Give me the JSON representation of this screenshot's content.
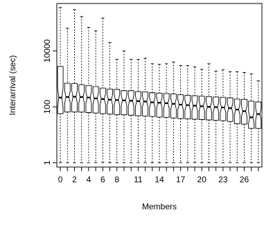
{
  "chart_data": {
    "type": "boxplot",
    "xlabel": "Members",
    "ylabel": "Interarrival (sec)",
    "y_scale": "log",
    "ylim": [
      0.7,
      500000
    ],
    "y_ticks": [
      1,
      100,
      10000
    ],
    "y_tick_labels": [
      "1",
      "100",
      "10000"
    ],
    "x_tick_labels": [
      "0",
      "2",
      "4",
      "6",
      "8",
      "11",
      "14",
      "17",
      "20",
      "23",
      "26"
    ],
    "x_tick_positions": [
      0,
      2,
      4,
      6,
      8,
      11,
      14,
      17,
      20,
      23,
      26
    ],
    "notched": true,
    "boxes": [
      {
        "member": 0,
        "whisker_low": 1,
        "q1": 57,
        "median": 215,
        "q3": 2800,
        "whisker_high": 360000
      },
      {
        "member": 1,
        "whisker_low": 1,
        "q1": 66,
        "median": 225,
        "q3": 700,
        "whisker_high": 65000
      },
      {
        "member": 2,
        "whisker_low": 1,
        "q1": 66,
        "median": 230,
        "q3": 680,
        "whisker_high": 300000
      },
      {
        "member": 3,
        "whisker_low": 1,
        "q1": 65,
        "median": 225,
        "q3": 620,
        "whisker_high": 170000
      },
      {
        "member": 4,
        "whisker_low": 1,
        "q1": 62,
        "median": 215,
        "q3": 580,
        "whisker_high": 70000
      },
      {
        "member": 5,
        "whisker_low": 1,
        "q1": 60,
        "median": 200,
        "q3": 530,
        "whisker_high": 52000
      },
      {
        "member": 6,
        "whisker_low": 1,
        "q1": 57,
        "median": 190,
        "q3": 470,
        "whisker_high": 150000
      },
      {
        "member": 7,
        "whisker_low": 1,
        "q1": 55,
        "median": 180,
        "q3": 430,
        "whisker_high": 20000
      },
      {
        "member": 8,
        "whisker_low": 1,
        "q1": 52,
        "median": 175,
        "q3": 420,
        "whisker_high": 5000
      },
      {
        "member": 9,
        "whisker_low": 1,
        "q1": 52,
        "median": 170,
        "q3": 380,
        "whisker_high": 10000
      },
      {
        "member": 10,
        "whisker_low": 1,
        "q1": 50,
        "median": 165,
        "q3": 380,
        "whisker_high": 5000
      },
      {
        "member": 11,
        "whisker_low": 1,
        "q1": 48,
        "median": 160,
        "q3": 350,
        "whisker_high": 5000
      },
      {
        "member": 12,
        "whisker_low": 1,
        "q1": 47,
        "median": 155,
        "q3": 340,
        "whisker_high": 5500
      },
      {
        "member": 13,
        "whisker_low": 1,
        "q1": 45,
        "median": 145,
        "q3": 320,
        "whisker_high": 3500
      },
      {
        "member": 14,
        "whisker_low": 1,
        "q1": 43,
        "median": 140,
        "q3": 310,
        "whisker_high": 3300
      },
      {
        "member": 15,
        "whisker_low": 1,
        "q1": 42,
        "median": 135,
        "q3": 300,
        "whisker_high": 3500
      },
      {
        "member": 16,
        "whisker_low": 1,
        "q1": 40,
        "median": 128,
        "q3": 290,
        "whisker_high": 4000
      },
      {
        "member": 17,
        "whisker_low": 1,
        "q1": 38,
        "median": 120,
        "q3": 270,
        "whisker_high": 3000
      },
      {
        "member": 18,
        "whisker_low": 1,
        "q1": 37,
        "median": 115,
        "q3": 260,
        "whisker_high": 3000
      },
      {
        "member": 19,
        "whisker_low": 1,
        "q1": 36,
        "median": 110,
        "q3": 250,
        "whisker_high": 2700
      },
      {
        "member": 20,
        "whisker_low": 1,
        "q1": 35,
        "median": 105,
        "q3": 240,
        "whisker_high": 2200
      },
      {
        "member": 21,
        "whisker_low": 1,
        "q1": 34,
        "median": 100,
        "q3": 230,
        "whisker_high": 3500
      },
      {
        "member": 22,
        "whisker_low": 1,
        "q1": 33,
        "median": 98,
        "q3": 225,
        "whisker_high": 1900
      },
      {
        "member": 23,
        "whisker_low": 1,
        "q1": 32,
        "median": 95,
        "q3": 220,
        "whisker_high": 2100
      },
      {
        "member": 24,
        "whisker_low": 1,
        "q1": 30,
        "median": 90,
        "q3": 210,
        "whisker_high": 1800
      },
      {
        "member": 25,
        "whisker_low": 1,
        "q1": 25,
        "median": 80,
        "q3": 190,
        "whisker_high": 1800
      },
      {
        "member": 26,
        "whisker_low": 1,
        "q1": 24,
        "median": 70,
        "q3": 185,
        "whisker_high": 1700
      },
      {
        "member": 27,
        "whisker_low": 1,
        "q1": 17,
        "median": 42,
        "q3": 160,
        "whisker_high": 1500
      },
      {
        "member": 28,
        "whisker_low": 1,
        "q1": 17,
        "median": 55,
        "q3": 150,
        "whisker_high": 850
      }
    ]
  }
}
